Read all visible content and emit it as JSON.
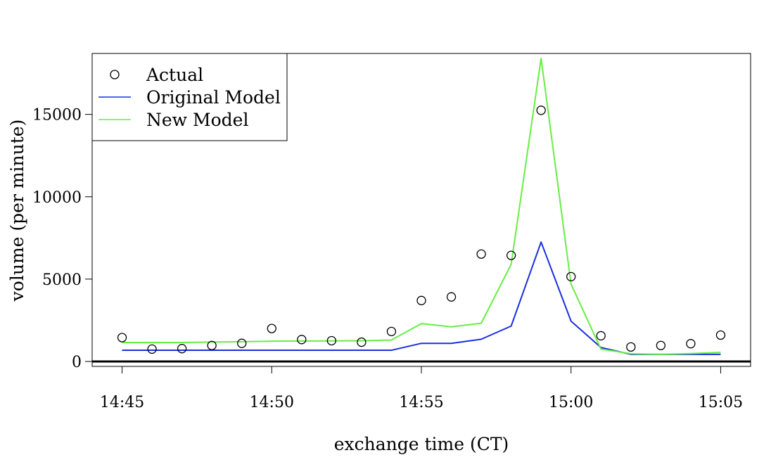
{
  "chart_data": {
    "type": "line",
    "xlabel": "exchange time (CT)",
    "ylabel": "volume (per minute)",
    "x": [
      "14:45",
      "14:46",
      "14:47",
      "14:48",
      "14:49",
      "14:50",
      "14:51",
      "14:52",
      "14:53",
      "14:54",
      "14:55",
      "14:56",
      "14:57",
      "14:58",
      "14:59",
      "15:00",
      "15:01",
      "15:02",
      "15:03",
      "15:04",
      "15:05"
    ],
    "x_ticks": [
      "14:45",
      "14:50",
      "14:55",
      "15:00",
      "15:05"
    ],
    "y_ticks": [
      0,
      5000,
      10000,
      15000
    ],
    "xlim": [
      "14:44",
      "15:06"
    ],
    "ylim": [
      -300,
      18700
    ],
    "reference_line_y": 0,
    "grid": false,
    "legend_position": "top-left",
    "series": [
      {
        "name": "Actual",
        "style": "points",
        "color": "#000000",
        "values": [
          1450,
          750,
          780,
          970,
          1100,
          2000,
          1330,
          1260,
          1170,
          1820,
          3700,
          3920,
          6520,
          6440,
          15250,
          5150,
          1560,
          880,
          970,
          1080,
          1600
        ]
      },
      {
        "name": "Original Model",
        "style": "line",
        "color": "#1a2fe0",
        "values": [
          680,
          680,
          680,
          680,
          680,
          680,
          680,
          680,
          680,
          680,
          1100,
          1100,
          1350,
          2150,
          7250,
          2450,
          850,
          430,
          430,
          430,
          430
        ]
      },
      {
        "name": "New Model",
        "style": "line",
        "color": "#66ee44",
        "values": [
          1150,
          1150,
          1150,
          1180,
          1200,
          1230,
          1240,
          1250,
          1260,
          1300,
          2300,
          2100,
          2320,
          5900,
          18400,
          4700,
          750,
          470,
          430,
          480,
          550
        ]
      }
    ]
  }
}
